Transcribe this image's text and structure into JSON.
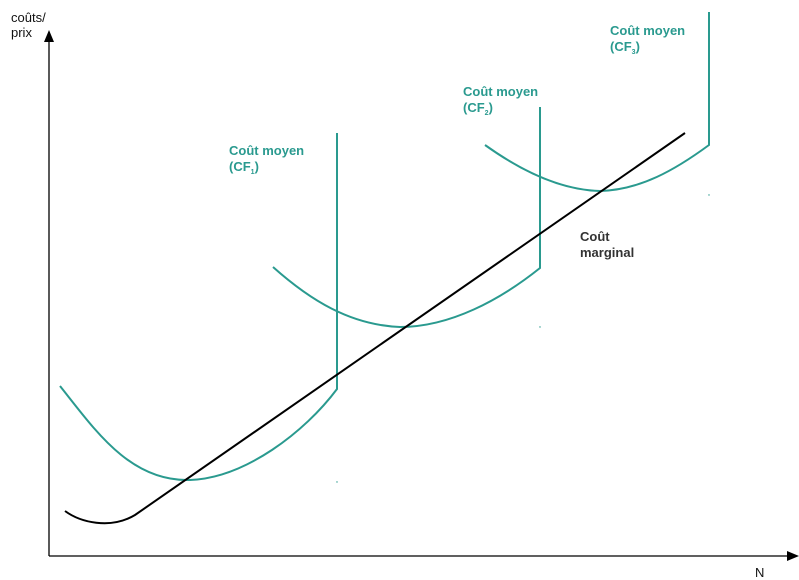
{
  "axes": {
    "y_label_line1": "coûts/",
    "y_label_line2": "prix",
    "x_label": "N"
  },
  "curves": {
    "cf1": {
      "label": "Coût moyen",
      "sub_open": "(CF",
      "sub_index": "1",
      "sub_close": ")"
    },
    "cf2": {
      "label": "Coût moyen",
      "sub_open": "(CF",
      "sub_index": "2",
      "sub_close": ")"
    },
    "cf3": {
      "label": "Coût moyen",
      "sub_open": "(CF",
      "sub_index": "3",
      "sub_close": ")"
    },
    "marginal": {
      "line1": "Coût",
      "line2": "marginal"
    }
  },
  "colors": {
    "average_cost": "#2a9a8f",
    "marginal_cost": "#000000",
    "axis": "#000000",
    "marginal_label": "#333333"
  }
}
